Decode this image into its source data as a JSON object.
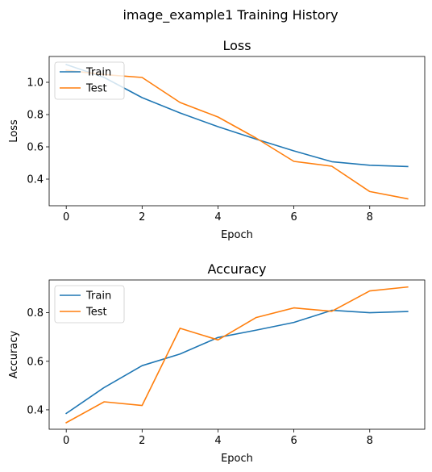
{
  "figure": {
    "title": "image_example1 Training History"
  },
  "chart_data": [
    {
      "type": "line",
      "title": "Loss",
      "xlabel": "Epoch",
      "ylabel": "Loss",
      "xlim": [
        -0.45,
        9.45
      ],
      "ylim": [
        0.235,
        1.16
      ],
      "xticks": [
        0,
        2,
        4,
        6,
        8
      ],
      "yticks": [
        0.4,
        0.6,
        0.8,
        1.0
      ],
      "ytick_labels": [
        "0.4",
        "0.6",
        "0.8",
        "1.0"
      ],
      "grid": false,
      "legend": "upper left",
      "x": [
        0,
        1,
        2,
        3,
        4,
        5,
        6,
        7,
        8,
        9
      ],
      "series": [
        {
          "name": "Train",
          "color": "#1f77b4",
          "values": [
            1.11,
            1.03,
            0.905,
            0.81,
            0.725,
            0.648,
            0.575,
            0.508,
            0.486,
            0.478
          ]
        },
        {
          "name": "Test",
          "color": "#ff7f0e",
          "values": [
            1.075,
            1.048,
            1.03,
            0.875,
            0.785,
            0.655,
            0.51,
            0.48,
            0.323,
            0.278
          ]
        }
      ]
    },
    {
      "type": "line",
      "title": "Accuracy",
      "xlabel": "Epoch",
      "ylabel": "Accuracy",
      "xlim": [
        -0.45,
        9.45
      ],
      "ylim": [
        0.32,
        0.935
      ],
      "xticks": [
        0,
        2,
        4,
        6,
        8
      ],
      "yticks": [
        0.4,
        0.6,
        0.8
      ],
      "ytick_labels": [
        "0.4",
        "0.6",
        "0.8"
      ],
      "grid": false,
      "legend": "upper left",
      "x": [
        0,
        1,
        2,
        3,
        4,
        5,
        6,
        7,
        8,
        9
      ],
      "series": [
        {
          "name": "Train",
          "color": "#1f77b4",
          "values": [
            0.385,
            0.492,
            0.582,
            0.63,
            0.698,
            0.728,
            0.76,
            0.81,
            0.8,
            0.805
          ]
        },
        {
          "name": "Test",
          "color": "#ff7f0e",
          "values": [
            0.347,
            0.433,
            0.418,
            0.736,
            0.688,
            0.78,
            0.82,
            0.806,
            0.89,
            0.906
          ]
        }
      ]
    }
  ]
}
